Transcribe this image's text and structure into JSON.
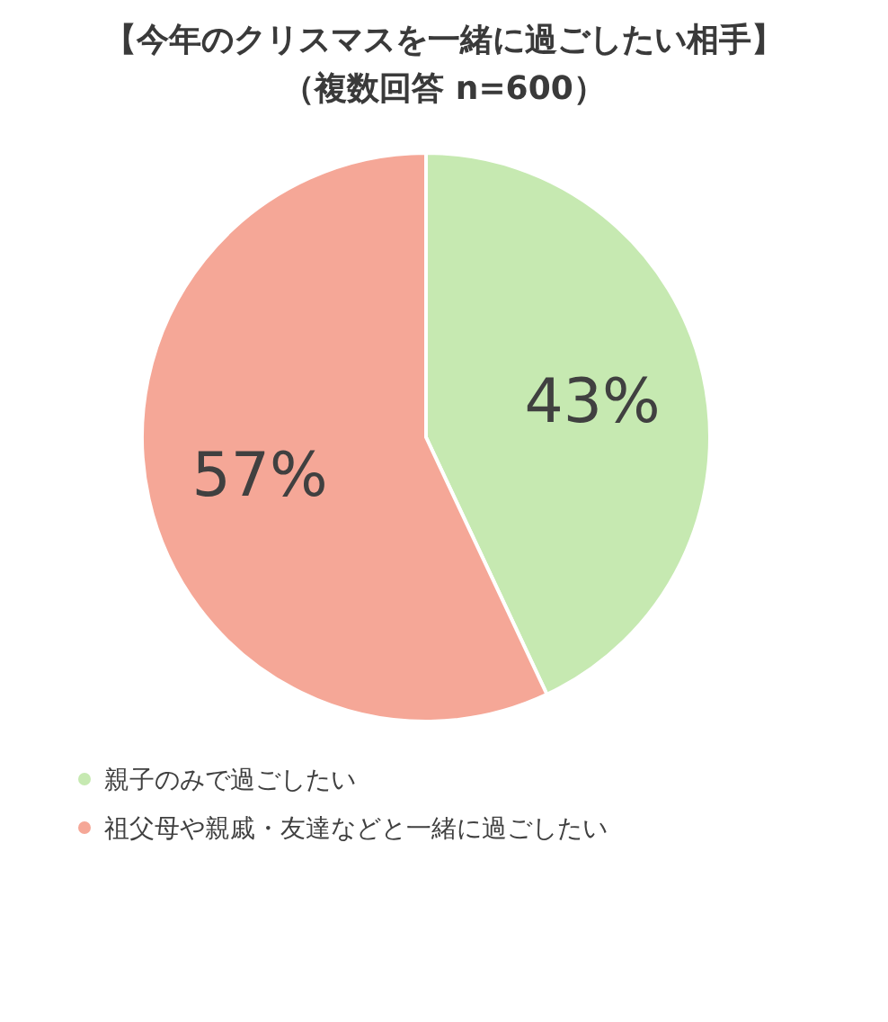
{
  "chart_data": {
    "type": "pie",
    "title": "【今年のクリスマスを一緒に過ごしたい相手】",
    "subtitle": "（複数回答 n=600）",
    "categories": [
      "親子のみで過ごしたい",
      "祖父母や親戚・友達などと一緒に過ごしたい"
    ],
    "values": [
      43,
      57
    ],
    "colors": [
      "#c6e9b1",
      "#f5a797"
    ],
    "value_labels": [
      "43%",
      "57%"
    ],
    "legend": "bottom"
  }
}
